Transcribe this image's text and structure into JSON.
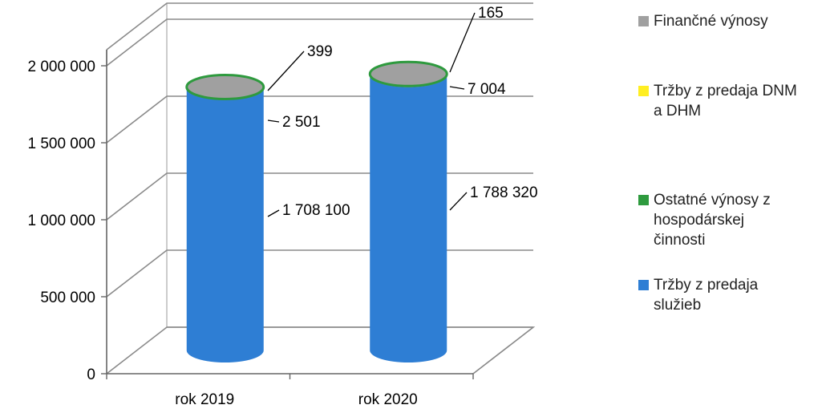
{
  "chart_data": {
    "type": "bar",
    "bar_shape": "3d-cylinder",
    "stacked": true,
    "categories": [
      "rok 2019",
      "rok 2020"
    ],
    "series": [
      {
        "name": "Tržby z predaja služieb",
        "values": [
          1708100,
          1788320
        ],
        "color": "#2e7ed4"
      },
      {
        "name": "Ostatné výnosy z hospodárskej činnosti",
        "values": [
          2501,
          7004
        ],
        "color": "#2e9a3e"
      },
      {
        "name": "Tržby z predaja DNM a DHM",
        "values": [
          0,
          0
        ],
        "color": "#ffee22"
      },
      {
        "name": "Finančné výnosy",
        "values": [
          399,
          165
        ],
        "color": "#a0a0a0"
      }
    ],
    "data_labels": [
      {
        "category": "rok 2019",
        "series": "Finančné výnosy",
        "text": "399"
      },
      {
        "category": "rok 2019",
        "series": "Ostatné výnosy z hospodárskej činnosti",
        "text": "2 501"
      },
      {
        "category": "rok 2019",
        "series": "Tržby z predaja služieb",
        "text": "1 708 100"
      },
      {
        "category": "rok 2020",
        "series": "Finančné výnosy",
        "text": "165"
      },
      {
        "category": "rok 2020",
        "series": "Ostatné výnosy z hospodárskej činnosti",
        "text": "7 004"
      },
      {
        "category": "rok 2020",
        "series": "Tržby z predaja služieb",
        "text": "1 788 320"
      }
    ],
    "y_ticks": [
      "0",
      "500 000",
      "1 000 000",
      "1 500 000",
      "2 000 000"
    ],
    "ylim": [
      0,
      2000000
    ],
    "title": "",
    "xlabel": "",
    "ylabel": "",
    "grid": true,
    "legend_position": "right"
  },
  "legend": [
    {
      "lines": [
        "Finančné výnosy"
      ],
      "color": "#a0a0a0"
    },
    {
      "lines": [
        "Tržby z predaja DNM",
        "a DHM"
      ],
      "color": "#ffee22"
    },
    {
      "lines": [
        "Ostatné výnosy z",
        "hospodárskej",
        "činnosti"
      ],
      "color": "#2e9a3e"
    },
    {
      "lines": [
        "Tržby z predaja",
        "služieb"
      ],
      "color": "#2e7ed4"
    }
  ]
}
